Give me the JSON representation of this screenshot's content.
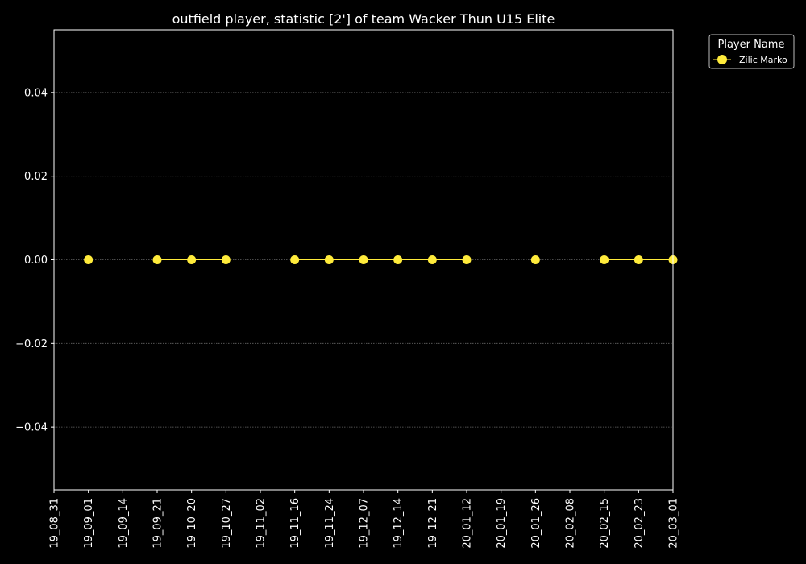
{
  "chart_data": {
    "type": "line",
    "title": "outfield player, statistic [2'] of team Wacker Thun U15 Elite",
    "xlabel": "",
    "ylabel": "",
    "categories": [
      "19_08_31",
      "19_09_01",
      "19_09_14",
      "19_09_21",
      "19_10_20",
      "19_10_27",
      "19_11_02",
      "19_11_16",
      "19_11_24",
      "19_12_07",
      "19_12_14",
      "19_12_21",
      "20_01_12",
      "20_01_19",
      "20_01_26",
      "20_02_08",
      "20_02_15",
      "20_02_23",
      "20_03_01"
    ],
    "ylim": [
      -0.055,
      0.055
    ],
    "yticks": [
      -0.04,
      -0.02,
      0.0,
      0.02,
      0.04
    ],
    "ytick_labels": [
      "−0.04",
      "−0.02",
      "0.00",
      "0.02",
      "0.04"
    ],
    "grid": "horizontal-dotted",
    "legend": {
      "title": "Player Name",
      "position": "outside-top-right"
    },
    "series": [
      {
        "name": "Zilic Marko",
        "color": "#ffeb3b",
        "values": [
          null,
          0,
          null,
          0,
          0,
          0,
          null,
          0,
          0,
          0,
          0,
          0,
          0,
          null,
          0,
          null,
          0,
          0,
          0
        ]
      }
    ]
  },
  "colors": {
    "background": "#000000",
    "foreground": "#ffffff",
    "grid": "#666666"
  }
}
